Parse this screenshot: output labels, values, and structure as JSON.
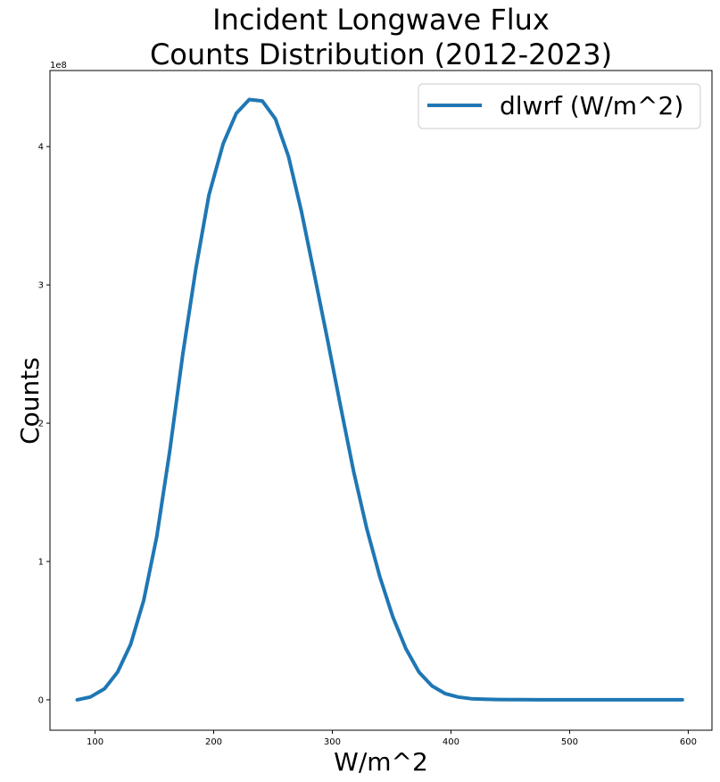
{
  "chart_data": {
    "type": "line",
    "title_lines": [
      "Incident Longwave Flux",
      "Counts Distribution (2012-2023)"
    ],
    "xlabel": "W/m^2",
    "ylabel": "Counts",
    "y_offset_text": "1e8",
    "xlim": [
      62,
      620
    ],
    "ylim": [
      -0.22,
      4.55
    ],
    "y_units_multiplier": 100000000,
    "xticks": [
      100,
      200,
      300,
      400,
      500,
      600
    ],
    "yticks": [
      0,
      1,
      2,
      3,
      4
    ],
    "grid": false,
    "legend_position": "upper right",
    "color": "#1f77b4",
    "series": [
      {
        "name": "dlwrf (W/m^2)",
        "x": [
          85,
          96,
          108,
          119,
          130,
          141,
          152,
          163,
          174,
          185,
          196,
          208,
          219,
          230,
          241,
          252,
          263,
          274,
          285,
          296,
          307,
          318,
          329,
          340,
          351,
          362,
          373,
          384,
          395,
          406,
          417,
          428,
          439,
          450,
          461,
          473,
          484,
          495,
          506,
          517,
          528,
          539,
          550,
          561,
          572,
          583,
          595
        ],
        "y": [
          0.0,
          0.02,
          0.08,
          0.2,
          0.4,
          0.72,
          1.18,
          1.8,
          2.5,
          3.12,
          3.65,
          4.02,
          4.24,
          4.34,
          4.33,
          4.2,
          3.93,
          3.53,
          3.07,
          2.6,
          2.12,
          1.65,
          1.24,
          0.89,
          0.6,
          0.37,
          0.2,
          0.1,
          0.045,
          0.02,
          0.008,
          0.004,
          0.002,
          0.001,
          0.0005,
          0.0,
          0.0,
          0.0,
          0.0,
          0.0,
          0.0,
          0.0,
          0.0,
          0.0,
          0.0,
          0.0,
          0.0
        ]
      }
    ]
  }
}
